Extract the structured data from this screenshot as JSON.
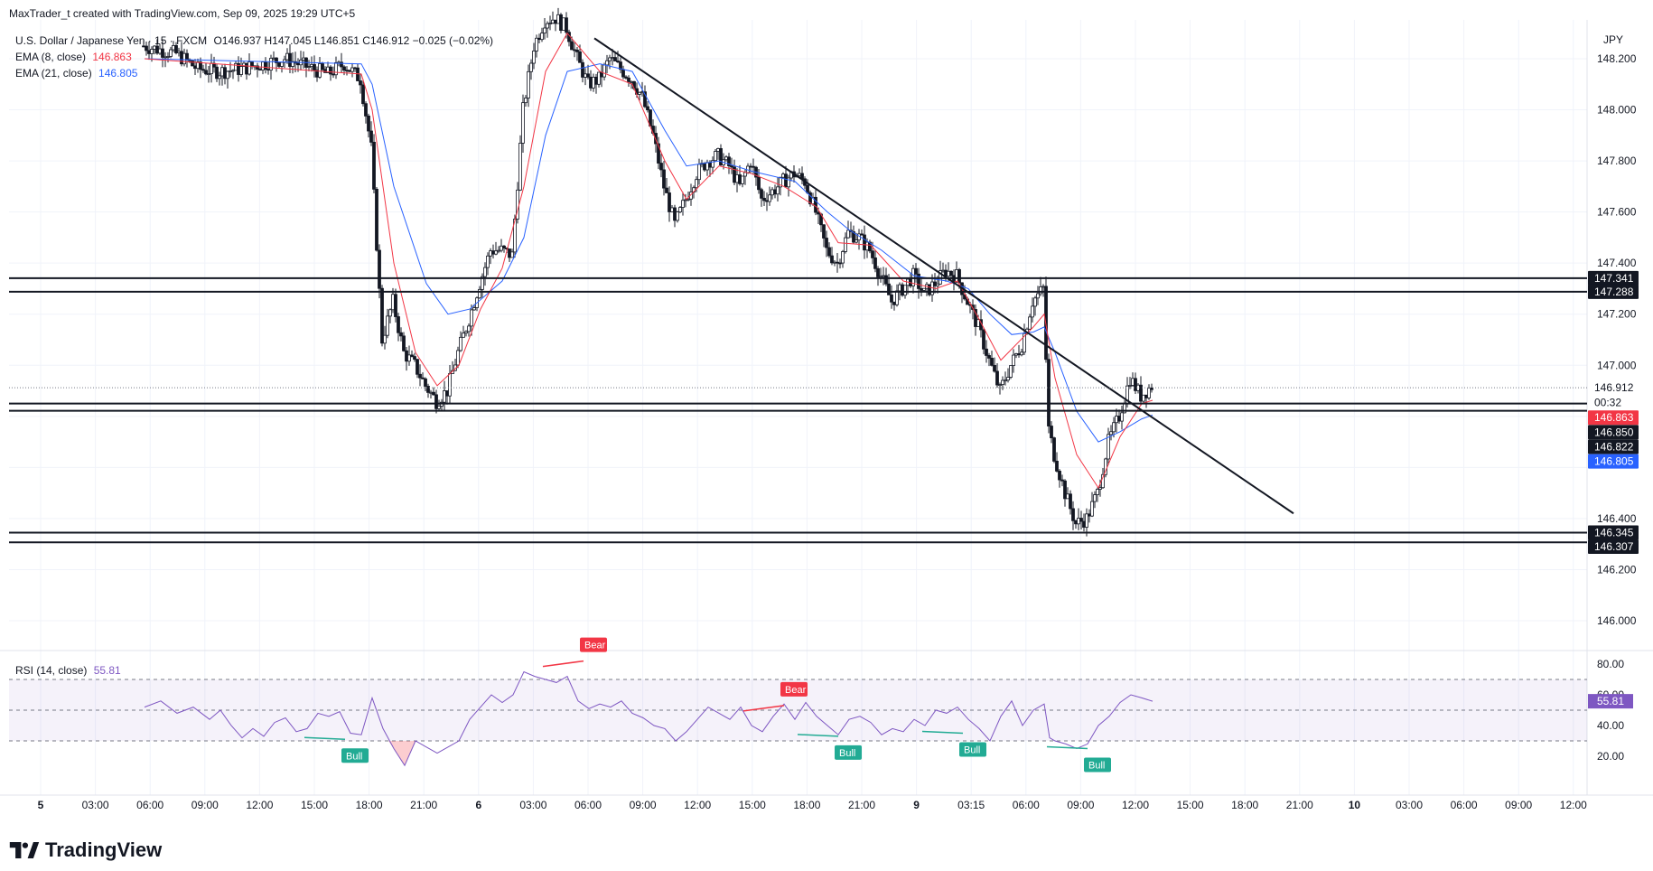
{
  "header": {
    "credit": "MaxTrader_t created with TradingView.com, Sep 09, 2025 19:29 UTC+5"
  },
  "legend": {
    "symbol": "U.S. Dollar / Japanese Yen · 15 · FXCM",
    "ohlc": "O146.937  H147.045  L146.851  C146.912  −0.025 (−0.02%)",
    "ema8": {
      "label": "EMA (8, close)",
      "value": "146.863",
      "color": "#f23645"
    },
    "ema21": {
      "label": "EMA (21, close)",
      "value": "146.805",
      "color": "#2962ff"
    }
  },
  "rsi_legend": {
    "label": "RSI (14, close)",
    "value": "55.81",
    "color": "#7e57c2"
  },
  "footer": {
    "brand": "TradingView"
  },
  "currency": "JPY",
  "chart_data": [
    {
      "type": "candlestick",
      "title": "U.S. Dollar / Japanese Yen · 15 · FXCM",
      "y_axis": {
        "ticks": [
          "146.000",
          "146.200",
          "146.400",
          "147.000",
          "147.200",
          "147.400",
          "147.600",
          "147.800",
          "148.000",
          "148.200"
        ],
        "range": [
          146.0,
          148.32
        ]
      },
      "x_axis": {
        "ticks": [
          "5",
          "03:00",
          "06:00",
          "09:00",
          "12:00",
          "15:00",
          "18:00",
          "21:00",
          "6",
          "03:00",
          "06:00",
          "09:00",
          "12:00",
          "15:00",
          "18:00",
          "21:00",
          "9",
          "03:15",
          "06:00",
          "09:00",
          "12:00",
          "15:00",
          "18:00",
          "21:00",
          "10",
          "03:00",
          "06:00",
          "09:00",
          "12:00"
        ]
      },
      "close_path": [
        [
          0,
          148.25
        ],
        [
          6,
          148.22
        ],
        [
          10,
          148.16
        ],
        [
          14,
          148.15
        ],
        [
          18,
          148.16
        ],
        [
          22,
          148.18
        ],
        [
          26,
          148.2
        ],
        [
          30,
          148.17
        ],
        [
          34,
          148.14
        ],
        [
          37,
          148.18
        ],
        [
          40,
          148.12
        ],
        [
          42,
          147.85
        ],
        [
          44,
          147.1
        ],
        [
          46,
          147.25
        ],
        [
          48,
          147.05
        ],
        [
          50,
          147.0
        ],
        [
          52,
          146.92
        ],
        [
          54,
          146.86
        ],
        [
          56,
          146.9
        ],
        [
          58,
          147.05
        ],
        [
          60,
          147.18
        ],
        [
          62,
          147.32
        ],
        [
          64,
          147.45
        ],
        [
          66,
          147.45
        ],
        [
          68,
          147.43
        ],
        [
          70,
          148.0
        ],
        [
          72,
          148.25
        ],
        [
          74,
          148.35
        ],
        [
          76,
          148.36
        ],
        [
          78,
          148.32
        ],
        [
          80,
          148.2
        ],
        [
          82,
          148.1
        ],
        [
          84,
          148.12
        ],
        [
          86,
          148.2
        ],
        [
          88,
          148.16
        ],
        [
          90,
          148.12
        ],
        [
          92,
          148.05
        ],
        [
          94,
          147.9
        ],
        [
          96,
          147.7
        ],
        [
          98,
          147.55
        ],
        [
          100,
          147.65
        ],
        [
          102,
          147.75
        ],
        [
          104,
          147.8
        ],
        [
          106,
          147.82
        ],
        [
          108,
          147.78
        ],
        [
          110,
          147.7
        ],
        [
          112,
          147.8
        ],
        [
          114,
          147.65
        ],
        [
          116,
          147.68
        ],
        [
          118,
          147.72
        ],
        [
          120,
          147.75
        ],
        [
          122,
          147.72
        ],
        [
          124,
          147.6
        ],
        [
          126,
          147.45
        ],
        [
          128,
          147.4
        ],
        [
          130,
          147.52
        ],
        [
          132,
          147.5
        ],
        [
          134,
          147.45
        ],
        [
          136,
          147.35
        ],
        [
          138,
          147.25
        ],
        [
          140,
          147.3
        ],
        [
          142,
          147.35
        ],
        [
          144,
          147.28
        ],
        [
          146,
          147.32
        ],
        [
          148,
          147.37
        ],
        [
          150,
          147.35
        ],
        [
          152,
          147.25
        ],
        [
          154,
          147.15
        ],
        [
          156,
          147.02
        ],
        [
          158,
          146.9
        ],
        [
          160,
          147.0
        ],
        [
          162,
          147.08
        ],
        [
          164,
          147.25
        ],
        [
          166,
          147.3
        ],
        [
          167,
          146.75
        ],
        [
          168,
          146.65
        ],
        [
          170,
          146.5
        ],
        [
          172,
          146.38
        ],
        [
          174,
          146.4
        ],
        [
          176,
          146.5
        ],
        [
          178,
          146.7
        ],
        [
          180,
          146.8
        ],
        [
          182,
          146.95
        ],
        [
          184,
          146.88
        ],
        [
          186,
          146.92
        ]
      ],
      "ema8_path": [
        [
          0,
          148.2
        ],
        [
          40,
          148.14
        ],
        [
          42,
          148.0
        ],
        [
          46,
          147.4
        ],
        [
          50,
          147.05
        ],
        [
          54,
          146.92
        ],
        [
          58,
          147.0
        ],
        [
          62,
          147.22
        ],
        [
          66,
          147.38
        ],
        [
          70,
          147.7
        ],
        [
          74,
          148.15
        ],
        [
          78,
          148.3
        ],
        [
          84,
          148.15
        ],
        [
          90,
          148.1
        ],
        [
          96,
          147.8
        ],
        [
          100,
          147.65
        ],
        [
          106,
          147.78
        ],
        [
          112,
          147.75
        ],
        [
          118,
          147.7
        ],
        [
          124,
          147.62
        ],
        [
          128,
          147.48
        ],
        [
          134,
          147.47
        ],
        [
          140,
          147.33
        ],
        [
          146,
          147.3
        ],
        [
          150,
          147.33
        ],
        [
          154,
          147.18
        ],
        [
          158,
          147.02
        ],
        [
          164,
          147.15
        ],
        [
          166,
          147.2
        ],
        [
          168,
          146.95
        ],
        [
          172,
          146.65
        ],
        [
          176,
          146.52
        ],
        [
          180,
          146.72
        ],
        [
          184,
          146.85
        ],
        [
          186,
          146.863
        ]
      ],
      "ema21_path": [
        [
          0,
          148.2
        ],
        [
          40,
          148.18
        ],
        [
          42,
          148.1
        ],
        [
          46,
          147.7
        ],
        [
          52,
          147.32
        ],
        [
          56,
          147.2
        ],
        [
          60,
          147.22
        ],
        [
          66,
          147.33
        ],
        [
          70,
          147.5
        ],
        [
          74,
          147.9
        ],
        [
          78,
          148.15
        ],
        [
          84,
          148.18
        ],
        [
          90,
          148.15
        ],
        [
          96,
          147.92
        ],
        [
          100,
          147.78
        ],
        [
          106,
          147.8
        ],
        [
          112,
          147.76
        ],
        [
          120,
          147.72
        ],
        [
          126,
          147.6
        ],
        [
          130,
          147.53
        ],
        [
          136,
          147.45
        ],
        [
          142,
          147.35
        ],
        [
          148,
          147.33
        ],
        [
          152,
          147.3
        ],
        [
          156,
          147.2
        ],
        [
          160,
          147.12
        ],
        [
          164,
          147.13
        ],
        [
          166,
          147.15
        ],
        [
          168,
          147.05
        ],
        [
          172,
          146.82
        ],
        [
          176,
          146.7
        ],
        [
          180,
          146.74
        ],
        [
          184,
          146.79
        ],
        [
          186,
          146.805
        ]
      ],
      "trendline": {
        "from": [
          83,
          148.28
        ],
        "to": [
          212,
          146.42
        ]
      },
      "horizontal_levels": [
        147.341,
        147.288,
        146.85,
        146.822,
        146.345,
        146.307
      ],
      "current_price_line": 146.912,
      "price_labels": [
        {
          "value": "147.341",
          "y": 147.341,
          "bg": "#131722"
        },
        {
          "value": "147.288",
          "y": 147.288,
          "bg": "#131722"
        },
        {
          "value": "146.912",
          "y": 146.912,
          "bg": "#ffffff",
          "fg": "#131722"
        },
        {
          "value": "00:32",
          "y": 146.855,
          "bg": "#ffffff",
          "fg": "#131722"
        },
        {
          "value": "146.863",
          "y": 146.795,
          "bg": "#f23645"
        },
        {
          "value": "146.850",
          "y": 146.738,
          "bg": "#131722"
        },
        {
          "value": "146.822",
          "y": 146.681,
          "bg": "#131722"
        },
        {
          "value": "146.805",
          "y": 146.624,
          "bg": "#2962ff"
        },
        {
          "value": "146.345",
          "y": 146.345,
          "bg": "#131722"
        },
        {
          "value": "146.307",
          "y": 146.29,
          "bg": "#131722"
        }
      ]
    },
    {
      "type": "line",
      "title": "RSI (14, close)",
      "y_axis": {
        "ticks": [
          "20.00",
          "40.00",
          "60.00",
          "80.00"
        ],
        "range": [
          10,
          82
        ]
      },
      "bands": {
        "upper": 70,
        "mid": 50,
        "lower": 30
      },
      "current": "55.81",
      "rsi_path": [
        [
          0,
          52
        ],
        [
          3,
          56
        ],
        [
          6,
          48
        ],
        [
          9,
          52
        ],
        [
          12,
          44
        ],
        [
          14,
          50
        ],
        [
          16,
          40
        ],
        [
          18,
          32
        ],
        [
          20,
          38
        ],
        [
          22,
          33
        ],
        [
          24,
          42
        ],
        [
          26,
          45
        ],
        [
          28,
          36
        ],
        [
          30,
          38
        ],
        [
          32,
          48
        ],
        [
          34,
          46
        ],
        [
          36,
          49
        ],
        [
          38,
          35
        ],
        [
          40,
          34
        ],
        [
          42,
          58
        ],
        [
          44,
          38
        ],
        [
          46,
          25
        ],
        [
          48,
          14
        ],
        [
          50,
          30
        ],
        [
          52,
          26
        ],
        [
          54,
          22
        ],
        [
          56,
          26
        ],
        [
          58,
          30
        ],
        [
          60,
          44
        ],
        [
          62,
          52
        ],
        [
          64,
          60
        ],
        [
          66,
          55
        ],
        [
          68,
          60
        ],
        [
          70,
          75
        ],
        [
          72,
          72
        ],
        [
          74,
          70
        ],
        [
          76,
          68
        ],
        [
          78,
          72
        ],
        [
          80,
          56
        ],
        [
          82,
          51
        ],
        [
          84,
          54
        ],
        [
          86,
          52
        ],
        [
          88,
          56
        ],
        [
          90,
          48
        ],
        [
          92,
          45
        ],
        [
          94,
          40
        ],
        [
          96,
          38
        ],
        [
          98,
          30
        ],
        [
          100,
          36
        ],
        [
          102,
          44
        ],
        [
          104,
          52
        ],
        [
          106,
          48
        ],
        [
          108,
          44
        ],
        [
          110,
          52
        ],
        [
          112,
          40
        ],
        [
          114,
          36
        ],
        [
          116,
          46
        ],
        [
          118,
          54
        ],
        [
          120,
          44
        ],
        [
          122,
          55
        ],
        [
          124,
          46
        ],
        [
          126,
          40
        ],
        [
          128,
          34
        ],
        [
          130,
          44
        ],
        [
          132,
          46
        ],
        [
          134,
          42
        ],
        [
          136,
          34
        ],
        [
          138,
          38
        ],
        [
          140,
          36
        ],
        [
          142,
          44
        ],
        [
          144,
          40
        ],
        [
          146,
          50
        ],
        [
          148,
          48
        ],
        [
          150,
          52
        ],
        [
          152,
          44
        ],
        [
          154,
          38
        ],
        [
          156,
          30
        ],
        [
          158,
          46
        ],
        [
          160,
          56
        ],
        [
          162,
          40
        ],
        [
          164,
          50
        ],
        [
          166,
          54
        ],
        [
          167,
          32
        ],
        [
          168,
          30
        ],
        [
          170,
          28
        ],
        [
          172,
          25
        ],
        [
          174,
          28
        ],
        [
          176,
          40
        ],
        [
          178,
          46
        ],
        [
          180,
          55
        ],
        [
          182,
          60
        ],
        [
          184,
          58
        ],
        [
          186,
          55.81
        ]
      ],
      "annotations": [
        {
          "text": "Bull",
          "color": "#22ab94",
          "at": [
            37,
            31
          ]
        },
        {
          "text": "Bear",
          "color": "#f23645",
          "at": [
            81,
            82
          ]
        },
        {
          "text": "Bear",
          "color": "#f23645",
          "at": [
            118,
            53
          ]
        },
        {
          "text": "Bull",
          "color": "#22ab94",
          "at": [
            128,
            33
          ]
        },
        {
          "text": "Bull",
          "color": "#22ab94",
          "at": [
            151,
            35
          ]
        },
        {
          "text": "Bull",
          "color": "#22ab94",
          "at": [
            174,
            25
          ]
        }
      ]
    }
  ]
}
